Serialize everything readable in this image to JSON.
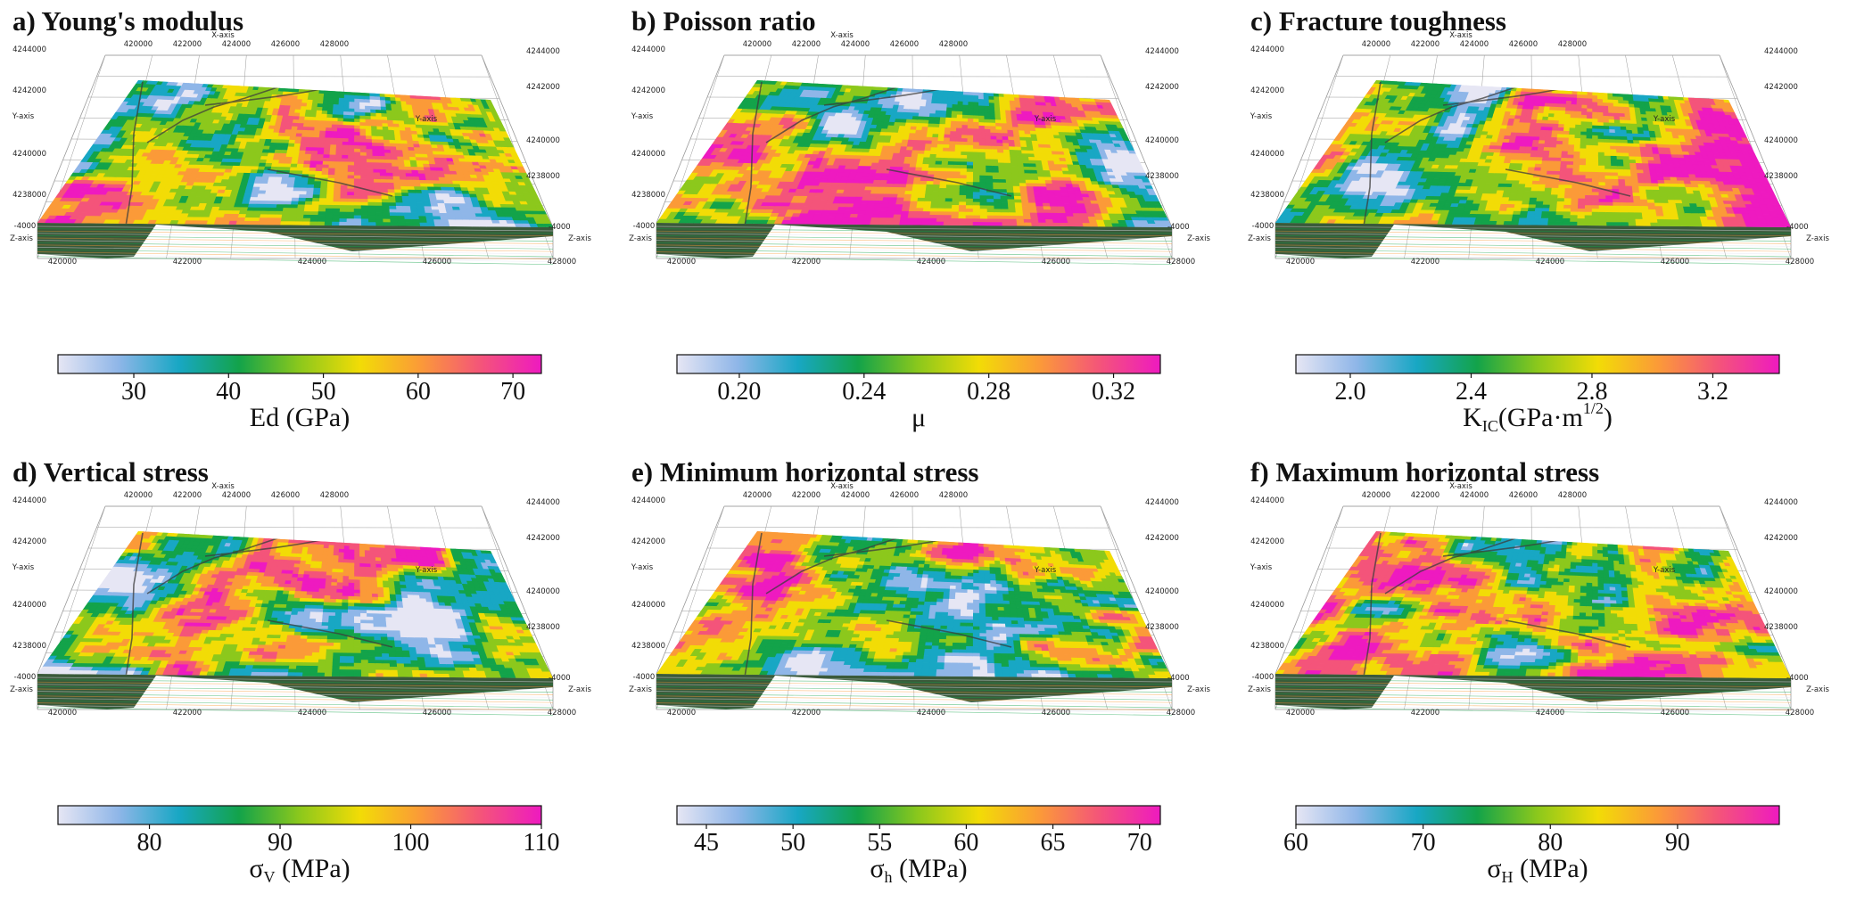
{
  "colors": {
    "ramp": [
      "#e6e6f4",
      "#8fb6e8",
      "#18a7c4",
      "#13a34a",
      "#8cc81c",
      "#f2dc06",
      "#fb9a38",
      "#f4547a",
      "#ee1ac0"
    ],
    "wall": "#3a5a3a",
    "grid": "#9a9a9a"
  },
  "axes": {
    "x_axis_label": "X-axis",
    "y_axis_label": "Y-axis",
    "z_axis_label": "Z-axis",
    "x_ticks": [
      "420000",
      "422000",
      "424000",
      "426000",
      "428000"
    ],
    "y_ticks": [
      "4244000",
      "4242000",
      "4240000",
      "4238000"
    ],
    "z_tick": "-4000"
  },
  "panels": [
    {
      "title": "a) Young's modulus",
      "ticks": [
        30,
        40,
        50,
        60,
        70
      ],
      "range": [
        22,
        73
      ],
      "label": {
        "main": "Ed (GPa)",
        "sub": "",
        "tail": "",
        "sup": "",
        "end": ""
      }
    },
    {
      "title": "b) Poisson ratio",
      "ticks": [
        "0.20",
        "0.24",
        "0.28",
        "0.32"
      ],
      "range": [
        0.18,
        0.335
      ],
      "label": {
        "main": "μ",
        "sub": "",
        "tail": "",
        "sup": "",
        "end": ""
      }
    },
    {
      "title": "c) Fracture toughness",
      "ticks": [
        "2.0",
        "2.4",
        "2.8",
        "3.2"
      ],
      "range": [
        1.82,
        3.42
      ],
      "label": {
        "main": "K",
        "sub": "IC",
        "tail": "(GPa·m",
        "sup": "1/2",
        "end": ")"
      }
    },
    {
      "title": "d) Vertical stress",
      "ticks": [
        80,
        90,
        100,
        110
      ],
      "range": [
        73,
        110
      ],
      "label": {
        "main": "σ",
        "sub": "V",
        "tail": " (MPa)",
        "sup": "",
        "end": ""
      }
    },
    {
      "title": "e) Minimum horizontal stress",
      "ticks": [
        45,
        50,
        55,
        60,
        65,
        70
      ],
      "range": [
        43.3,
        71.2
      ],
      "label": {
        "main": "σ",
        "sub": "h",
        "tail": " (MPa)",
        "sup": "",
        "end": ""
      }
    },
    {
      "title": "f) Maximum horizontal stress",
      "ticks": [
        60,
        70,
        80,
        90
      ],
      "range": [
        60,
        98
      ],
      "label": {
        "main": "σ",
        "sub": "H",
        "tail": " (MPa)",
        "sup": "",
        "end": ""
      }
    }
  ]
}
